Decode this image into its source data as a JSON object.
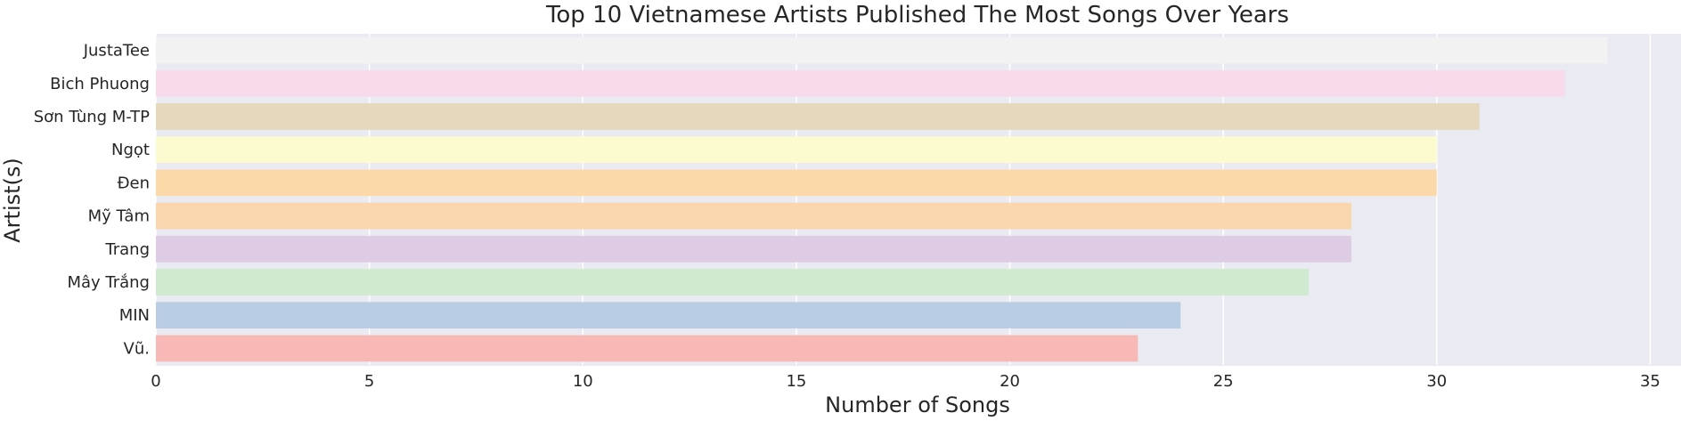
{
  "chart_data": {
    "type": "bar",
    "orientation": "horizontal",
    "title": "Top 10 Vietnamese Artists Published The Most Songs Over Years",
    "xlabel": "Number of Songs",
    "ylabel": "Artist(s)",
    "xlim": [
      0,
      35.7
    ],
    "xticks": [
      0,
      5,
      10,
      15,
      20,
      25,
      30,
      35
    ],
    "grid": true,
    "categories": [
      "JustaTee",
      "Bich Phuong",
      "Sơn Tùng M-TP",
      "Ngọt",
      "Đen",
      "Mỹ Tâm",
      "Trang",
      "Mây Trắng",
      "MIN",
      "Vũ."
    ],
    "values": [
      34,
      33,
      31,
      30,
      30,
      28,
      28,
      27,
      24,
      23
    ],
    "colors": [
      "#f2f2f2",
      "#f9daea",
      "#e5d8bd",
      "#fbfbcf",
      "#fbd9a9",
      "#f9d6ad",
      "#decbe4",
      "#d0ead0",
      "#b9cee4",
      "#f8b9b6"
    ],
    "background_color": "#eaeaf2",
    "grid_color": "#ffffff"
  }
}
